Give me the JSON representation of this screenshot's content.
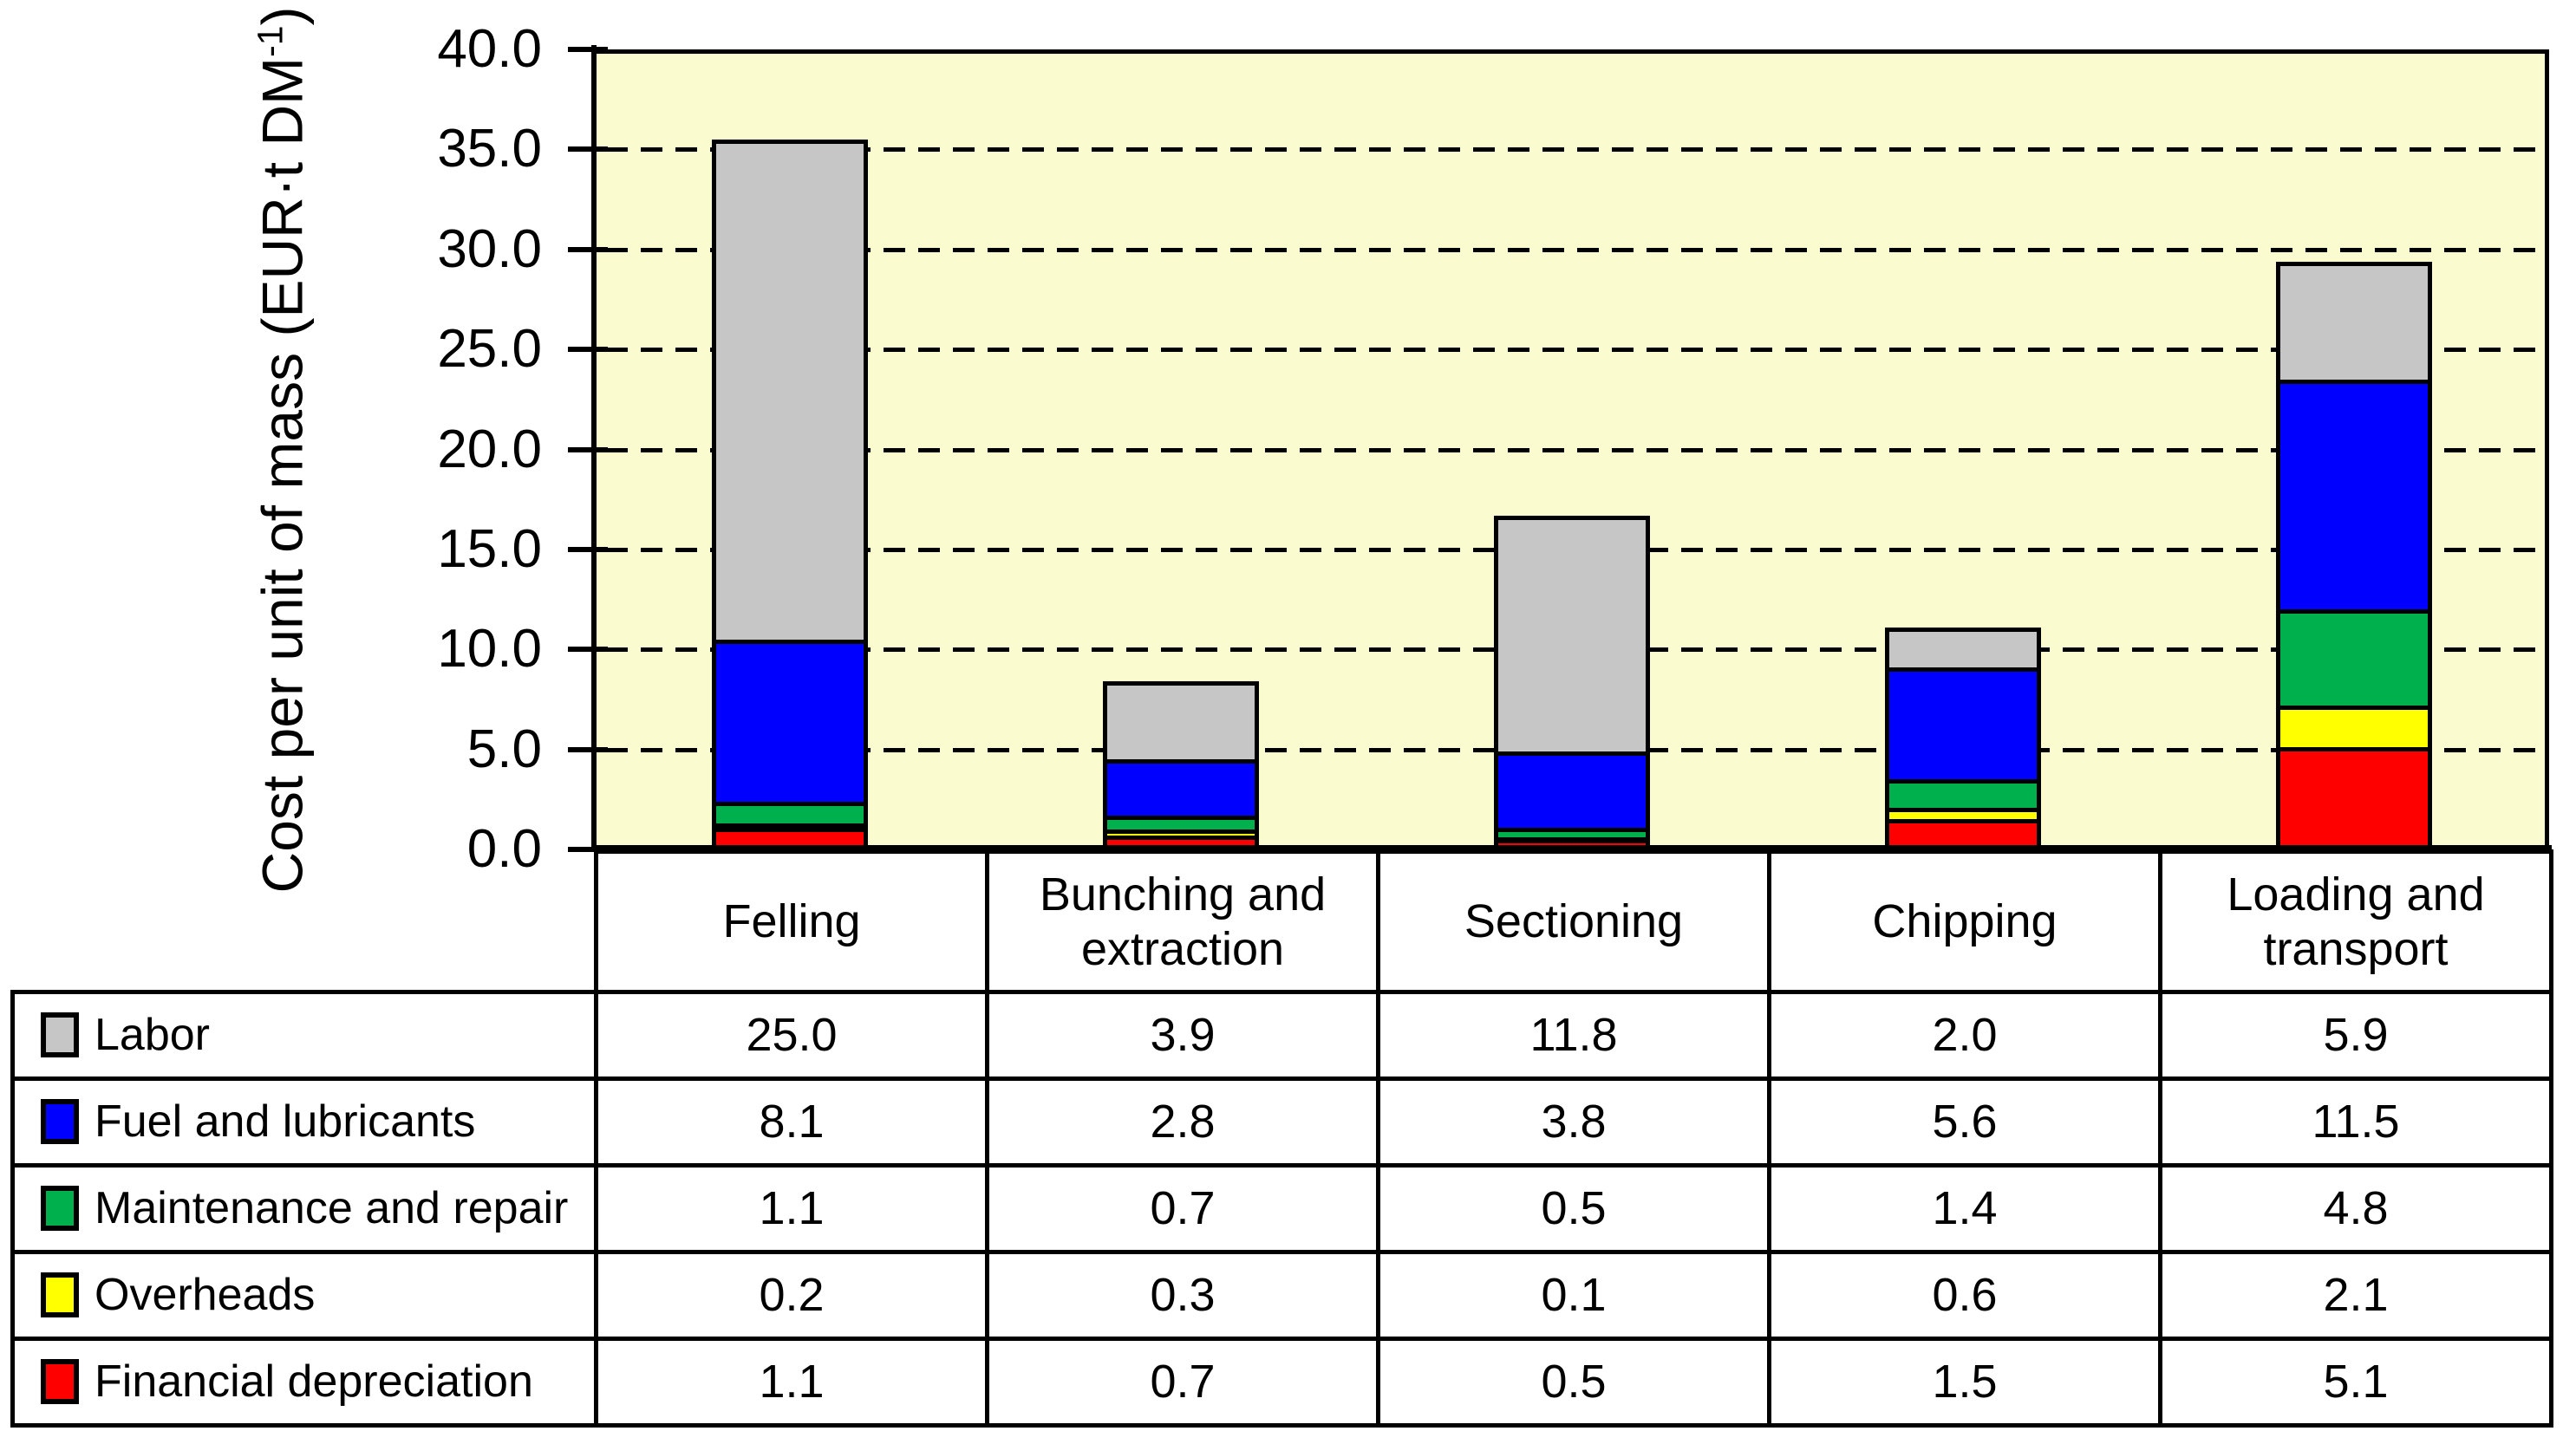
{
  "page": {
    "background": "#FFFFFF"
  },
  "y_axis": {
    "title": "Cost per unit of mass (EUR·t DM⁻¹)",
    "title_prefix": "Cost per unit of mass (EUR·t DM",
    "title_sup": "-1",
    "title_suffix": ")",
    "min": 0,
    "max": 40,
    "step": 5,
    "decimals": 1
  },
  "chart_data": {
    "type": "bar",
    "stacked": true,
    "title": "",
    "xlabel": "",
    "ylabel": "Cost per unit of mass (EUR·t DM⁻¹)",
    "ylim": [
      0,
      40
    ],
    "grid": "horizontal-dashed-black",
    "legend_position": "table-left",
    "plot_background": "#FBFBD0",
    "bar_border_color": "#000000",
    "categories": [
      "Felling",
      "Bunching and extraction",
      "Sectioning",
      "Chipping",
      "Loading and transport"
    ],
    "series": [
      {
        "name": "Labor",
        "color": "#C6C6C6",
        "values": [
          25.0,
          3.9,
          11.8,
          2.0,
          5.9
        ]
      },
      {
        "name": "Fuel and lubricants",
        "color": "#0000FF",
        "values": [
          8.1,
          2.8,
          3.8,
          5.6,
          11.5
        ]
      },
      {
        "name": "Maintenance and repair",
        "color": "#00B04C",
        "values": [
          1.1,
          0.7,
          0.5,
          1.4,
          4.8
        ]
      },
      {
        "name": "Overheads",
        "color": "#FFFF00",
        "values": [
          0.2,
          0.3,
          0.1,
          0.6,
          2.1
        ]
      },
      {
        "name": "Financial depreciation",
        "color": "#FF0000",
        "values": [
          1.1,
          0.7,
          0.5,
          1.5,
          5.1
        ]
      }
    ],
    "stack_order_bottom_to_top": [
      "Financial depreciation",
      "Overheads",
      "Maintenance and repair",
      "Fuel and lubricants",
      "Labor"
    ],
    "value_format_decimals": 1
  }
}
